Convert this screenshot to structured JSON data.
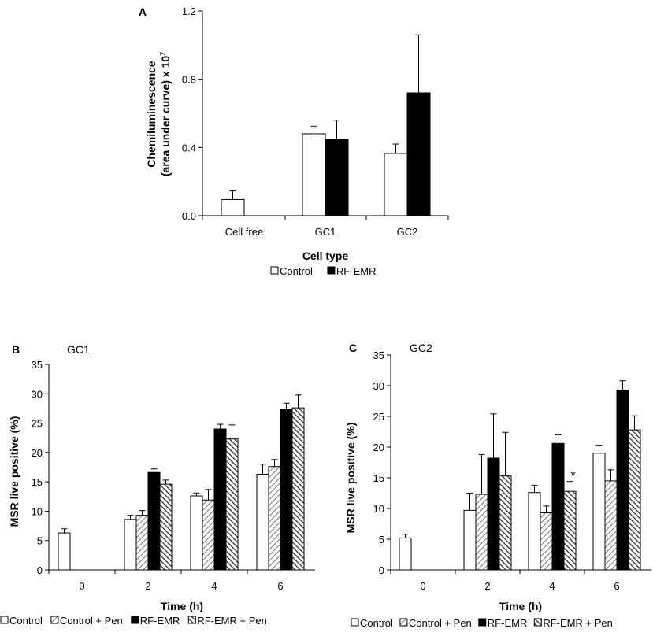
{
  "colors": {
    "control": "#ffffff",
    "rfemr": "#000000",
    "stroke": "#000000"
  },
  "chart_data": [
    {
      "panel": "A",
      "type": "bar",
      "title": "",
      "xlabel": "Cell type",
      "ylabel_line1": "Chemiluminescence",
      "ylabel_line2": "(area under curve) x 10",
      "ylabel_exp": "7",
      "ylim": [
        0,
        1.2
      ],
      "yticks": [
        "0.0",
        "0.4",
        "0.8",
        "1.2"
      ],
      "ytick_values": [
        0,
        0.4,
        0.8,
        1.2
      ],
      "categories": [
        "Cell free",
        "GC1",
        "GC2"
      ],
      "series": [
        {
          "name": "Control",
          "pattern": "white",
          "values": [
            0.095,
            0.48,
            0.365
          ],
          "errors": [
            0.05,
            0.045,
            0.055
          ]
        },
        {
          "name": "RF-EMR",
          "pattern": "black",
          "values": [
            null,
            0.45,
            0.72
          ],
          "errors": [
            null,
            0.11,
            0.34
          ]
        }
      ],
      "legend": [
        "Control",
        "RF-EMR"
      ]
    },
    {
      "panel": "B",
      "type": "bar",
      "title": "GC1",
      "xlabel": "Time (h)",
      "ylabel": "MSR live positive (%)",
      "ylim": [
        0,
        35
      ],
      "yticks": [
        "0",
        "5",
        "10",
        "15",
        "20",
        "25",
        "30",
        "35"
      ],
      "ytick_values": [
        0,
        5,
        10,
        15,
        20,
        25,
        30,
        35
      ],
      "categories": [
        "0",
        "2",
        "4",
        "6"
      ],
      "series": [
        {
          "name": "Control",
          "pattern": "white",
          "values": [
            6.3,
            8.6,
            12.6,
            16.3
          ],
          "errors": [
            0.7,
            0.7,
            0.5,
            1.7
          ]
        },
        {
          "name": "Control + Pen",
          "pattern": "hatch-light",
          "values": [
            null,
            9.3,
            11.9,
            17.6
          ],
          "errors": [
            null,
            0.8,
            1.8,
            1.2
          ]
        },
        {
          "name": "RF-EMR",
          "pattern": "black",
          "values": [
            null,
            16.6,
            24.0,
            27.3
          ],
          "errors": [
            null,
            0.6,
            0.8,
            1.1
          ]
        },
        {
          "name": "RF-EMR + Pen",
          "pattern": "hatch-dark",
          "values": [
            null,
            14.6,
            22.3,
            27.6
          ],
          "errors": [
            null,
            0.7,
            2.4,
            2.2
          ]
        }
      ],
      "legend": [
        "Control",
        "Control + Pen",
        "RF-EMR",
        "RF-EMR + Pen"
      ]
    },
    {
      "panel": "C",
      "type": "bar",
      "title": "GC2",
      "xlabel": "Time (h)",
      "ylabel": "MSR live positive (%)",
      "ylim": [
        0,
        35
      ],
      "yticks": [
        "0",
        "5",
        "10",
        "15",
        "20",
        "25",
        "30",
        "35"
      ],
      "ytick_values": [
        0,
        5,
        10,
        15,
        20,
        25,
        30,
        35
      ],
      "categories": [
        "0",
        "2",
        "4",
        "6"
      ],
      "series": [
        {
          "name": "Control",
          "pattern": "white",
          "values": [
            5.2,
            9.7,
            12.6,
            19.0
          ],
          "errors": [
            0.6,
            2.8,
            1.2,
            1.3
          ]
        },
        {
          "name": "Control + Pen",
          "pattern": "hatch-light",
          "values": [
            null,
            12.3,
            9.3,
            14.5
          ],
          "errors": [
            null,
            6.5,
            1.1,
            1.8
          ]
        },
        {
          "name": "RF-EMR",
          "pattern": "black",
          "values": [
            null,
            18.2,
            20.6,
            29.3
          ],
          "errors": [
            null,
            7.2,
            1.4,
            1.5
          ]
        },
        {
          "name": "RF-EMR + Pen",
          "pattern": "hatch-dark",
          "values": [
            null,
            15.3,
            12.8,
            22.8
          ],
          "errors": [
            null,
            7.1,
            1.6,
            2.3
          ]
        }
      ],
      "annotations": [
        {
          "text": "*",
          "category": "4",
          "series": "RF-EMR + Pen"
        }
      ],
      "legend": [
        "Control",
        "Control + Pen",
        "RF-EMR",
        "RF-EMR + Pen"
      ]
    }
  ]
}
